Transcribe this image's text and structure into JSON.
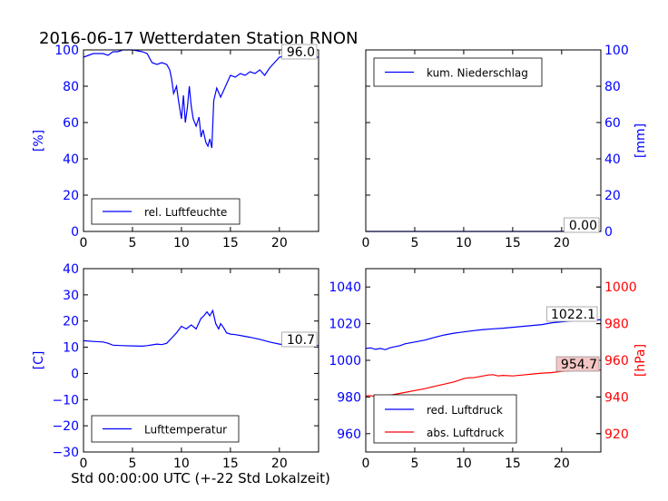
{
  "title": "2016-06-17 Wetterdaten Station RNON",
  "xlabel": "Std 00:00:00 UTC (+-22 Std Lokalzeit)",
  "colors": {
    "primary": "#0000ff",
    "secondary": "#ff0000",
    "axis": "#000000",
    "label_box_red": "#f4c6c6"
  },
  "chart_data": [
    {
      "type": "line",
      "panel": "top-left",
      "ylabel": "[%]",
      "ylabel_color": "#0000ff",
      "tick_color": "#0000ff",
      "xlim": [
        0,
        24
      ],
      "ylim": [
        0,
        100
      ],
      "xticks": [
        0,
        5,
        10,
        15,
        20
      ],
      "yticks": [
        0,
        20,
        40,
        60,
        80,
        100
      ],
      "legend_position": "lower-left",
      "last_value_label": "96.0",
      "series": [
        {
          "name": "rel. Luftfeuchte",
          "color": "#0000ff",
          "x": [
            0,
            0.5,
            1,
            2,
            2.5,
            3,
            3.5,
            4,
            5,
            6,
            6.5,
            7,
            7.5,
            8,
            8.5,
            8.8,
            9,
            9.2,
            9.5,
            9.7,
            10,
            10.2,
            10.4,
            10.6,
            10.8,
            11,
            11.2,
            11.5,
            11.8,
            12,
            12.2,
            12.5,
            12.7,
            12.9,
            13.1,
            13.3,
            13.6,
            14,
            14.5,
            15,
            15.5,
            16,
            16.5,
            17,
            17.5,
            18,
            18.5,
            19,
            19.5,
            20,
            21,
            22,
            24
          ],
          "y": [
            96,
            97,
            98,
            98,
            97,
            99,
            99,
            100,
            100,
            99,
            98,
            93,
            92,
            93,
            92,
            89,
            84,
            76,
            80,
            72,
            62,
            75,
            60,
            68,
            80,
            69,
            62,
            58,
            63,
            52,
            56,
            49,
            47,
            51,
            46,
            72,
            79,
            74,
            80,
            86,
            85,
            87,
            86,
            88,
            87,
            89,
            86,
            90,
            93,
            96,
            97,
            96,
            96
          ]
        }
      ]
    },
    {
      "type": "line",
      "panel": "top-right",
      "ylabel": "[mm]",
      "ylabel_color": "#0000ff",
      "tick_color": "#0000ff",
      "ytick_side": "right",
      "xlim": [
        0,
        24
      ],
      "ylim": [
        0,
        100
      ],
      "xticks": [
        0,
        5,
        10,
        15,
        20
      ],
      "yticks": [
        0,
        20,
        40,
        60,
        80,
        100
      ],
      "legend_position": "upper-left",
      "last_value_label": "0.00",
      "series": [
        {
          "name": "kum. Niederschlag",
          "color": "#0000ff",
          "x": [
            0,
            24
          ],
          "y": [
            0,
            0
          ]
        }
      ]
    },
    {
      "type": "line",
      "panel": "bottom-left",
      "ylabel": "[C]",
      "ylabel_color": "#0000ff",
      "tick_color": "#0000ff",
      "xlim": [
        0,
        24
      ],
      "ylim": [
        -30,
        40
      ],
      "xticks": [
        0,
        5,
        10,
        15,
        20
      ],
      "yticks": [
        -30,
        -20,
        -10,
        0,
        10,
        20,
        30,
        40
      ],
      "legend_position": "lower-left",
      "last_value_label": "10.7",
      "series": [
        {
          "name": "Lufttemperatur",
          "color": "#0000ff",
          "x": [
            0,
            1,
            2,
            2.5,
            3,
            4,
            5,
            6,
            6.5,
            7,
            7.5,
            8,
            8.5,
            9,
            9.5,
            10,
            10.5,
            11,
            11.5,
            12,
            12.3,
            12.6,
            12.9,
            13.2,
            13.5,
            13.8,
            14,
            14.3,
            14.6,
            15,
            15.5,
            16,
            17,
            18,
            19,
            20,
            21,
            22,
            24
          ],
          "y": [
            12.5,
            12.2,
            12,
            11.5,
            10.8,
            10.6,
            10.5,
            10.4,
            10.6,
            10.9,
            11.2,
            11.0,
            11.5,
            13.5,
            15.5,
            18,
            17,
            18.5,
            17,
            21,
            22,
            23.5,
            22,
            24,
            19,
            17,
            19,
            17.5,
            15.5,
            15,
            14.8,
            14.5,
            13.8,
            13,
            12,
            11.2,
            10.8,
            10.7,
            10.7
          ]
        }
      ]
    },
    {
      "type": "line",
      "panel": "bottom-right",
      "ylabel": "[hPa]",
      "ylabel_color": "#ff0000",
      "tick_color": "#0000ff",
      "right_tick_color": "#ff0000",
      "xlim": [
        0,
        24
      ],
      "ylim": [
        950,
        1050
      ],
      "yticks": [
        960,
        980,
        1000,
        1020,
        1040
      ],
      "ylim_right": [
        910,
        1010
      ],
      "yticks_right": [
        920,
        940,
        960,
        980,
        1000
      ],
      "xticks": [
        0,
        5,
        10,
        15,
        20
      ],
      "legend_position": "lower-left",
      "series": [
        {
          "name": "red. Luftdruck",
          "color": "#0000ff",
          "axis": "left",
          "last_value_label": "1022.1",
          "x": [
            0,
            0.5,
            1,
            1.5,
            2,
            2.5,
            3,
            3.5,
            4,
            5,
            6,
            7,
            8,
            9,
            10,
            11,
            12,
            13,
            14,
            15,
            16,
            17,
            18,
            19,
            20,
            21,
            22,
            23,
            24
          ],
          "y": [
            1006.5,
            1006.8,
            1006,
            1006.5,
            1005.8,
            1006.9,
            1007.5,
            1008,
            1009,
            1010,
            1011,
            1012.5,
            1013.8,
            1014.8,
            1015.5,
            1016.2,
            1016.8,
            1017.2,
            1017.5,
            1018,
            1018.5,
            1019,
            1019.5,
            1020.5,
            1021,
            1021.5,
            1022,
            1022.1,
            1022.1
          ]
        },
        {
          "name": "abs. Luftdruck",
          "color": "#ff0000",
          "axis": "right",
          "last_value_label": "954.7",
          "x": [
            0,
            0.5,
            1,
            1.5,
            2,
            2.5,
            3,
            4,
            5,
            6,
            7,
            8,
            9,
            10,
            10.5,
            11,
            12,
            12.5,
            13,
            13.5,
            14,
            15,
            16,
            17,
            18,
            19,
            20,
            21,
            22,
            23,
            24
          ],
          "y": [
            940.5,
            940.8,
            940,
            940.5,
            939.8,
            941,
            941.5,
            942.5,
            943.5,
            944.5,
            945.8,
            947,
            948.2,
            950,
            950.5,
            950.5,
            951.5,
            952,
            952.2,
            951.5,
            951.8,
            951.5,
            952,
            952.5,
            953,
            953.3,
            954,
            954.3,
            954.5,
            954.7,
            954.7
          ]
        }
      ]
    }
  ]
}
